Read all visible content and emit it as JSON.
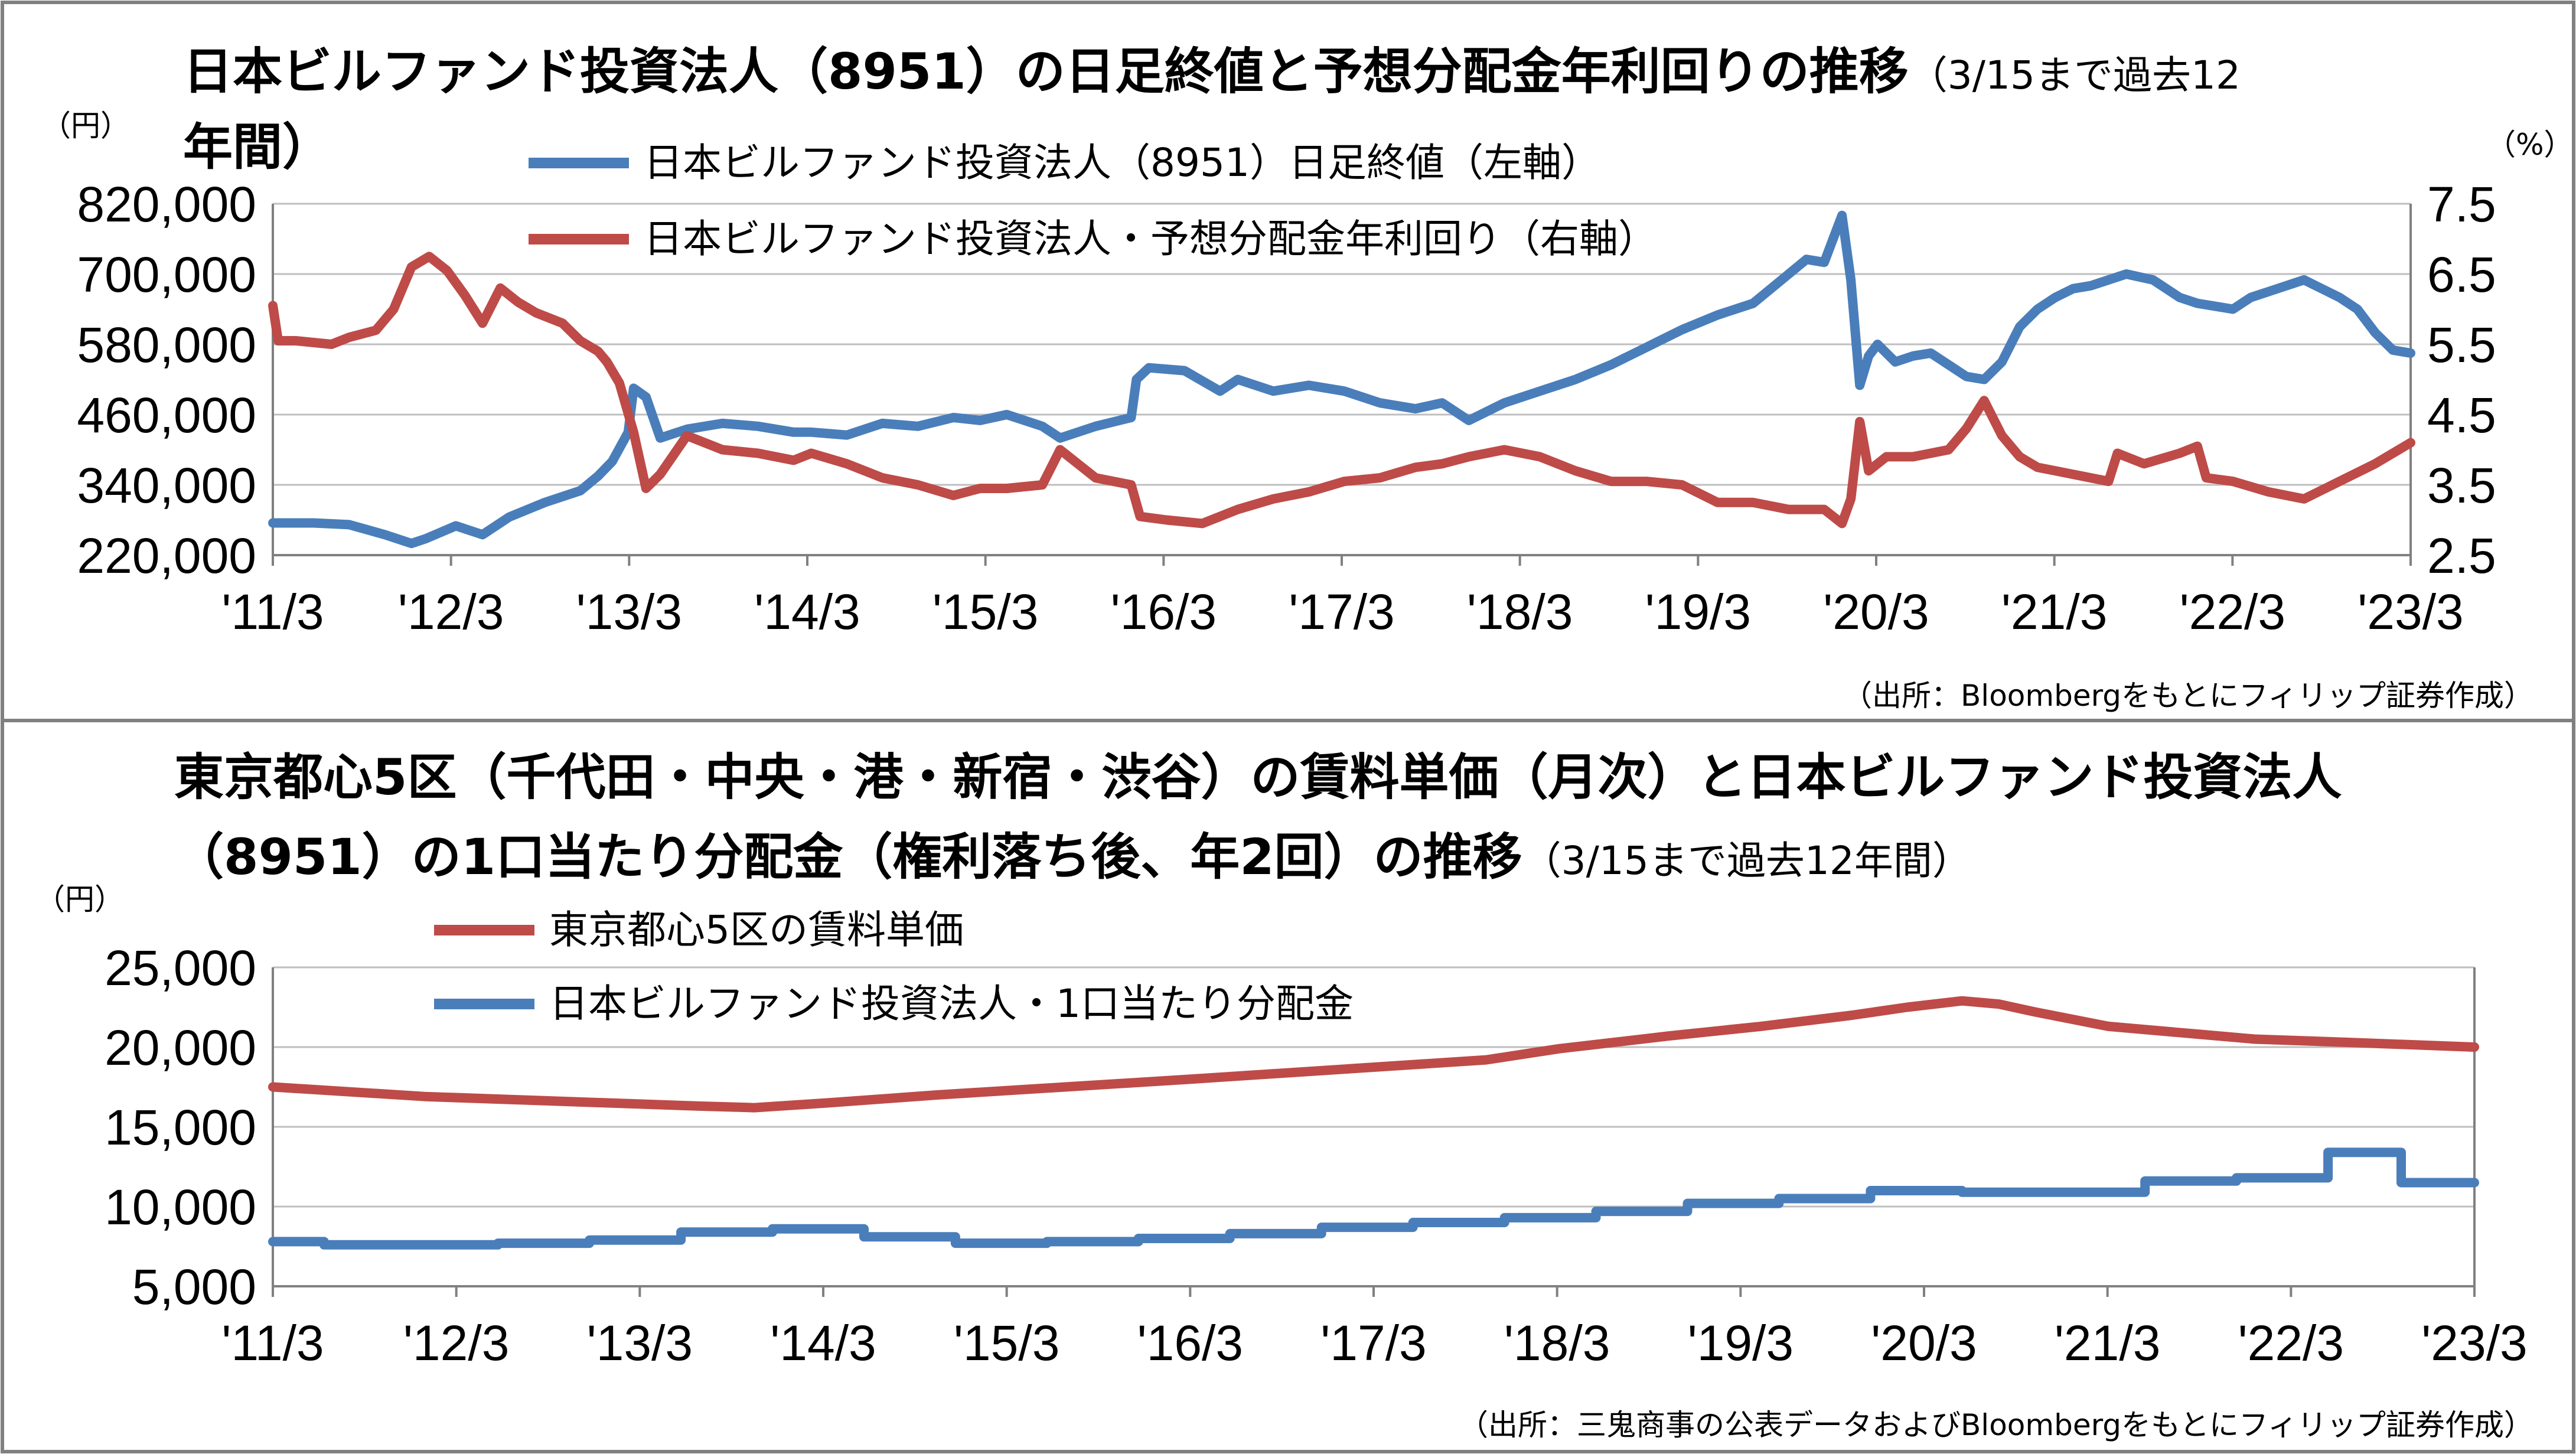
{
  "colors": {
    "blue": "#4a7ebb",
    "red": "#be4b48",
    "grid": "#bfbfbf",
    "frame": "#808080"
  },
  "chart_data": [
    {
      "type": "line",
      "title_line1": "日本ビルファンド投資法人（8951）の日足終値と予想分配金年利回りの推移",
      "title_line1_small": "（3/15まで過去12",
      "title_line2": "年間）",
      "left_unit": "（円）",
      "right_unit": "（%）",
      "legend": [
        "日本ビルファンド投資法人（8951）日足終値（左軸）",
        "日本ビルファンド投資法人・予想分配金年利回り（右軸）"
      ],
      "x_ticks": [
        "'11/3",
        "'12/3",
        "'13/3",
        "'14/3",
        "'15/3",
        "'16/3",
        "'17/3",
        "'18/3",
        "'19/3",
        "'20/3",
        "'21/3",
        "'22/3",
        "'23/3"
      ],
      "y_left_ticks": [
        "820,000",
        "700,000",
        "580,000",
        "460,000",
        "340,000",
        "220,000"
      ],
      "y_right_ticks": [
        "7.5",
        "6.5",
        "5.5",
        "4.5",
        "3.5",
        "2.5"
      ],
      "ylim_left": [
        220000,
        820000
      ],
      "ylim_right": [
        2.5,
        7.5
      ],
      "xlim": [
        2011.17,
        2023.2
      ],
      "grid": "horizontal",
      "source": "（出所：Bloombergをもとにフィリップ証券作成）",
      "series": [
        {
          "name": "日本ビルファンド投資法人（8951）日足終値（左軸）",
          "axis": "left",
          "color": "#4a7ebb",
          "x": [
            2011.17,
            2011.4,
            2011.6,
            2011.8,
            2011.95,
            2012.03,
            2012.2,
            2012.35,
            2012.5,
            2012.7,
            2012.9,
            2013.0,
            2013.08,
            2013.17,
            2013.2,
            2013.27,
            2013.35,
            2013.5,
            2013.7,
            2013.9,
            2014.1,
            2014.2,
            2014.4,
            2014.6,
            2014.8,
            2015.0,
            2015.15,
            2015.3,
            2015.5,
            2015.6,
            2015.8,
            2016.0,
            2016.03,
            2016.1,
            2016.3,
            2016.5,
            2016.6,
            2016.8,
            2017.0,
            2017.2,
            2017.4,
            2017.6,
            2017.75,
            2017.9,
            2018.1,
            2018.3,
            2018.5,
            2018.7,
            2018.9,
            2019.1,
            2019.3,
            2019.5,
            2019.6,
            2019.7,
            2019.8,
            2019.9,
            2019.95,
            2020.0,
            2020.05,
            2020.1,
            2020.15,
            2020.2,
            2020.3,
            2020.4,
            2020.5,
            2020.6,
            2020.7,
            2020.8,
            2020.9,
            2021.0,
            2021.1,
            2021.2,
            2021.3,
            2021.4,
            2021.6,
            2021.75,
            2021.9,
            2022.0,
            2022.2,
            2022.3,
            2022.4,
            2022.5,
            2022.6,
            2022.8,
            2022.9,
            2023.0,
            2023.1,
            2023.2
          ],
          "values": [
            275000,
            275000,
            272000,
            255000,
            240000,
            248000,
            270000,
            255000,
            285000,
            310000,
            330000,
            355000,
            380000,
            430000,
            505000,
            490000,
            420000,
            435000,
            445000,
            440000,
            430000,
            430000,
            425000,
            445000,
            440000,
            455000,
            450000,
            460000,
            440000,
            420000,
            440000,
            455000,
            520000,
            540000,
            535000,
            500000,
            520000,
            500000,
            510000,
            500000,
            480000,
            470000,
            480000,
            450000,
            480000,
            500000,
            520000,
            545000,
            575000,
            605000,
            630000,
            650000,
            675000,
            700000,
            725000,
            720000,
            760000,
            800000,
            690000,
            510000,
            560000,
            580000,
            550000,
            560000,
            565000,
            545000,
            525000,
            520000,
            550000,
            610000,
            640000,
            660000,
            675000,
            680000,
            700000,
            690000,
            660000,
            650000,
            640000,
            660000,
            670000,
            680000,
            690000,
            660000,
            640000,
            600000,
            570000,
            565000
          ]
        },
        {
          "name": "日本ビルファンド投資法人・予想分配金年利回り（右軸）",
          "axis": "right",
          "color": "#be4b48",
          "x": [
            2011.17,
            2011.2,
            2011.3,
            2011.5,
            2011.6,
            2011.75,
            2011.85,
            2011.95,
            2012.05,
            2012.15,
            2012.25,
            2012.35,
            2012.45,
            2012.55,
            2012.65,
            2012.8,
            2012.9,
            2013.0,
            2013.05,
            2013.12,
            2013.2,
            2013.27,
            2013.35,
            2013.5,
            2013.7,
            2013.9,
            2014.1,
            2014.2,
            2014.4,
            2014.6,
            2014.8,
            2015.0,
            2015.15,
            2015.3,
            2015.5,
            2015.6,
            2015.8,
            2016.0,
            2016.05,
            2016.2,
            2016.4,
            2016.6,
            2016.8,
            2017.0,
            2017.2,
            2017.4,
            2017.6,
            2017.75,
            2017.9,
            2018.1,
            2018.3,
            2018.5,
            2018.7,
            2018.9,
            2019.1,
            2019.3,
            2019.5,
            2019.7,
            2019.9,
            2020.0,
            2020.05,
            2020.1,
            2020.15,
            2020.25,
            2020.4,
            2020.6,
            2020.7,
            2020.8,
            2020.9,
            2021.0,
            2021.1,
            2021.2,
            2021.4,
            2021.5,
            2021.55,
            2021.7,
            2021.9,
            2022.0,
            2022.05,
            2022.2,
            2022.4,
            2022.6,
            2022.8,
            2023.0,
            2023.2
          ],
          "values": [
            6.05,
            5.55,
            5.55,
            5.5,
            5.6,
            5.7,
            6.0,
            6.6,
            6.75,
            6.55,
            6.2,
            5.8,
            6.3,
            6.1,
            5.95,
            5.8,
            5.55,
            5.4,
            5.25,
            4.95,
            4.25,
            3.45,
            3.65,
            4.2,
            4.0,
            3.95,
            3.85,
            3.95,
            3.8,
            3.6,
            3.5,
            3.35,
            3.45,
            3.45,
            3.5,
            4.0,
            3.6,
            3.5,
            3.05,
            3.0,
            2.95,
            3.15,
            3.3,
            3.4,
            3.55,
            3.6,
            3.75,
            3.8,
            3.9,
            4.0,
            3.9,
            3.7,
            3.55,
            3.55,
            3.5,
            3.25,
            3.25,
            3.15,
            3.15,
            2.95,
            3.3,
            4.4,
            3.7,
            3.9,
            3.9,
            4.0,
            4.3,
            4.7,
            4.2,
            3.9,
            3.75,
            3.7,
            3.6,
            3.55,
            3.95,
            3.8,
            3.95,
            4.05,
            3.6,
            3.55,
            3.4,
            3.3,
            3.55,
            3.8,
            4.1
          ]
        }
      ]
    },
    {
      "type": "line",
      "title_line1": "東京都心5区（千代田・中央・港・新宿・渋谷）の賃料単価（月次）と日本ビルファンド投資法人",
      "title_line2": "（8951）の1口当たり分配金（権利落ち後、年2回）の推移",
      "title_line2_small": "（3/15まで過去12年間）",
      "left_unit": "（円）",
      "legend": [
        "東京都心5区の賃料単価",
        "日本ビルファンド投資法人・1口当たり分配金"
      ],
      "x_ticks": [
        "'11/3",
        "'12/3",
        "'13/3",
        "'14/3",
        "'15/3",
        "'16/3",
        "'17/3",
        "'18/3",
        "'19/3",
        "'20/3",
        "'21/3",
        "'22/3",
        "'23/3"
      ],
      "y_ticks": [
        "25,000",
        "20,000",
        "15,000",
        "10,000",
        "5,000"
      ],
      "ylim": [
        5000,
        25000
      ],
      "xlim": [
        2011.17,
        2023.2
      ],
      "grid": "horizontal",
      "source": "（出所：三鬼商事の公表データおよびBloombergをもとにフィリップ証券作成）",
      "series": [
        {
          "name": "東京都心5区の賃料単価",
          "color": "#be4b48",
          "x": [
            2011.17,
            2012.0,
            2012.5,
            2013.0,
            2013.5,
            2013.8,
            2014.2,
            2014.8,
            2015.5,
            2016.2,
            2017.0,
            2017.8,
            2018.2,
            2018.8,
            2019.3,
            2019.8,
            2020.1,
            2020.4,
            2020.6,
            2020.8,
            2021.2,
            2021.7,
            2022.0,
            2022.5,
            2023.2
          ],
          "values": [
            17500,
            16900,
            16700,
            16500,
            16300,
            16200,
            16500,
            17000,
            17500,
            18000,
            18600,
            19200,
            19900,
            20700,
            21300,
            22000,
            22500,
            22900,
            22700,
            22200,
            21300,
            20800,
            20500,
            20300,
            20000
          ]
        },
        {
          "name": "日本ビルファンド投資法人・1口当たり分配金",
          "color": "#4a7ebb",
          "x": [
            2011.17,
            2011.45,
            2011.45,
            2012.4,
            2012.4,
            2012.9,
            2012.9,
            2013.4,
            2013.4,
            2013.9,
            2013.9,
            2014.4,
            2014.4,
            2014.9,
            2014.9,
            2015.4,
            2015.4,
            2015.9,
            2015.9,
            2016.4,
            2016.4,
            2016.9,
            2016.9,
            2017.4,
            2017.4,
            2017.9,
            2017.9,
            2018.4,
            2018.4,
            2018.9,
            2018.9,
            2019.4,
            2019.4,
            2019.9,
            2019.9,
            2020.4,
            2020.4,
            2020.9,
            2020.9,
            2021.4,
            2021.4,
            2021.9,
            2021.9,
            2022.4,
            2022.4,
            2022.8,
            2022.8,
            2023.2
          ],
          "values": [
            7800,
            7800,
            7600,
            7600,
            7700,
            7700,
            7900,
            7900,
            8400,
            8400,
            8600,
            8600,
            8100,
            8100,
            7700,
            7700,
            7800,
            7800,
            8000,
            8000,
            8300,
            8300,
            8700,
            8700,
            9000,
            9000,
            9300,
            9300,
            9700,
            9700,
            10200,
            10200,
            10500,
            10500,
            11000,
            11000,
            10900,
            10900,
            10900,
            10900,
            11600,
            11600,
            11800,
            11800,
            13400,
            13400,
            11500,
            11500
          ]
        }
      ]
    }
  ]
}
